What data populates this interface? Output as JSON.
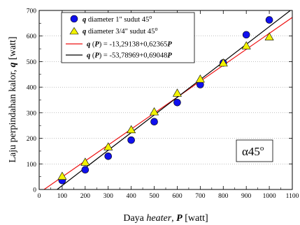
{
  "chart_data": {
    "type": "scatter",
    "xlabel": {
      "prefix": "Daya ",
      "italic": "heater",
      "sep": ", ",
      "sym": "P",
      "suffix": " [watt]"
    },
    "ylabel": {
      "prefix": "Laju perpindahan kalor, ",
      "sym": "q",
      "suffix": " [watt]"
    },
    "xlim": [
      0,
      1100
    ],
    "ylim": [
      0,
      700
    ],
    "xticks": [
      "0",
      "100",
      "200",
      "300",
      "400",
      "500",
      "600",
      "700",
      "800",
      "900",
      "1000",
      "1100"
    ],
    "yticks": [
      "0",
      "100",
      "200",
      "300",
      "400",
      "500",
      "600",
      "700"
    ],
    "annotation": {
      "alpha": "α",
      "value": "45",
      "degree": "o"
    },
    "series": [
      {
        "name": "q diameter 1\" sudut 45°",
        "legend": {
          "sym": "q",
          "text": " diameter 1\" sudut 45",
          "sup": "o"
        },
        "marker": "circle",
        "color": "#1010ee",
        "x": [
          100,
          200,
          300,
          400,
          500,
          600,
          700,
          800,
          900,
          1000
        ],
        "y": [
          35,
          77,
          130,
          193,
          265,
          340,
          410,
          495,
          605,
          663
        ]
      },
      {
        "name": "q diameter 3/4\" sudut 45°",
        "legend": {
          "sym": "q",
          "text": " diameter 3/4\" sudut 45",
          "sup": "o"
        },
        "marker": "triangle",
        "color": "#f2f200",
        "x": [
          100,
          200,
          300,
          400,
          500,
          600,
          700,
          800,
          900,
          1000
        ],
        "y": [
          50,
          105,
          165,
          232,
          302,
          375,
          430,
          493,
          560,
          595
        ]
      }
    ],
    "fits": [
      {
        "legend": {
          "sym": "q",
          "paren_sym": "P",
          "eq": " = -13,29138+0,62365",
          "tail_sym": "P"
        },
        "color": "#ee1111",
        "intercept": -13.29138,
        "slope": 0.62365
      },
      {
        "legend": {
          "sym": "q",
          "paren_sym": "P",
          "eq": " = -53,78969+0,69048",
          "tail_sym": "P"
        },
        "color": "#000000",
        "intercept": -53.78969,
        "slope": 0.69048
      }
    ]
  }
}
